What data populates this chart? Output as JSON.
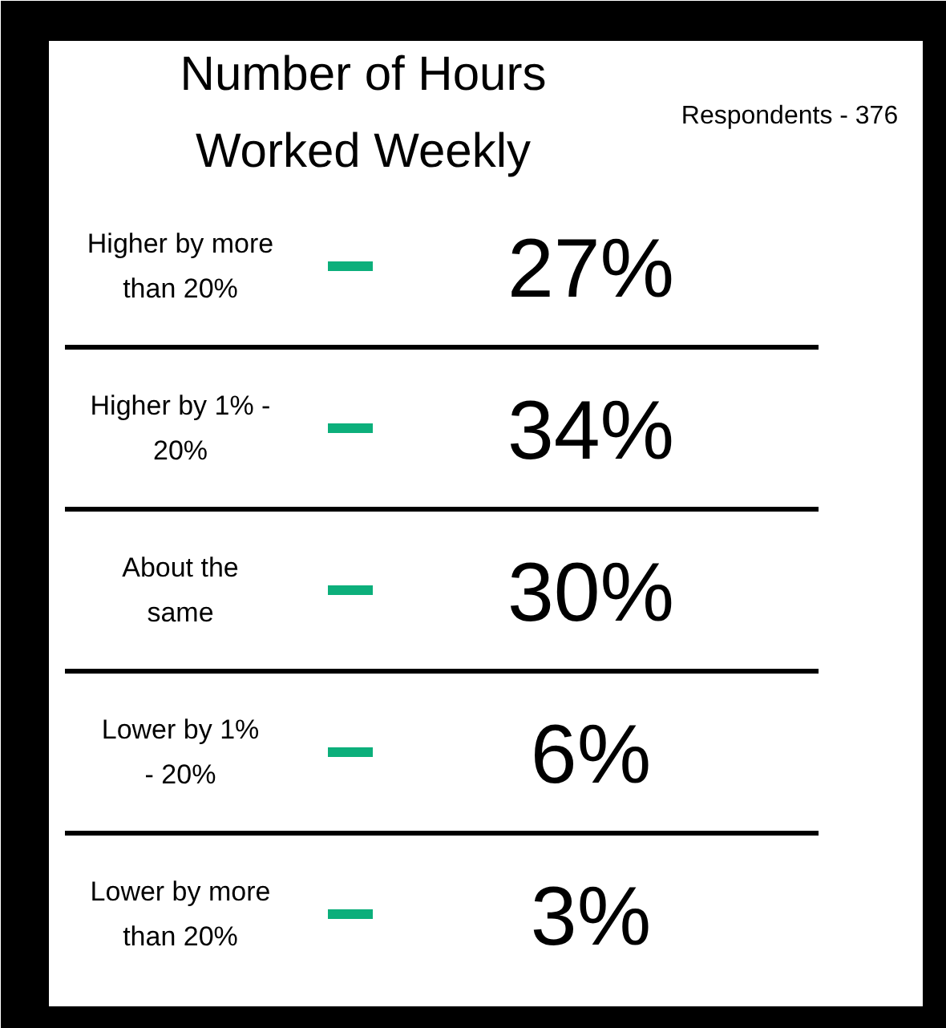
{
  "chart_data": {
    "type": "other",
    "title": "Number of Hours\nWorked Weekly",
    "annotations": [
      "Respondents - 376"
    ],
    "categories": [
      "Higher by more\nthan 20%",
      "Higher by 1% -\n20%",
      "About the\nsame",
      "Lower by 1%\n- 20%",
      "Lower by more\nthan 20%"
    ],
    "values": [
      27,
      34,
      30,
      6,
      3
    ],
    "value_labels": [
      "27%",
      "34%",
      "30%",
      "6%",
      "3%"
    ],
    "color": "#0caf7b"
  }
}
